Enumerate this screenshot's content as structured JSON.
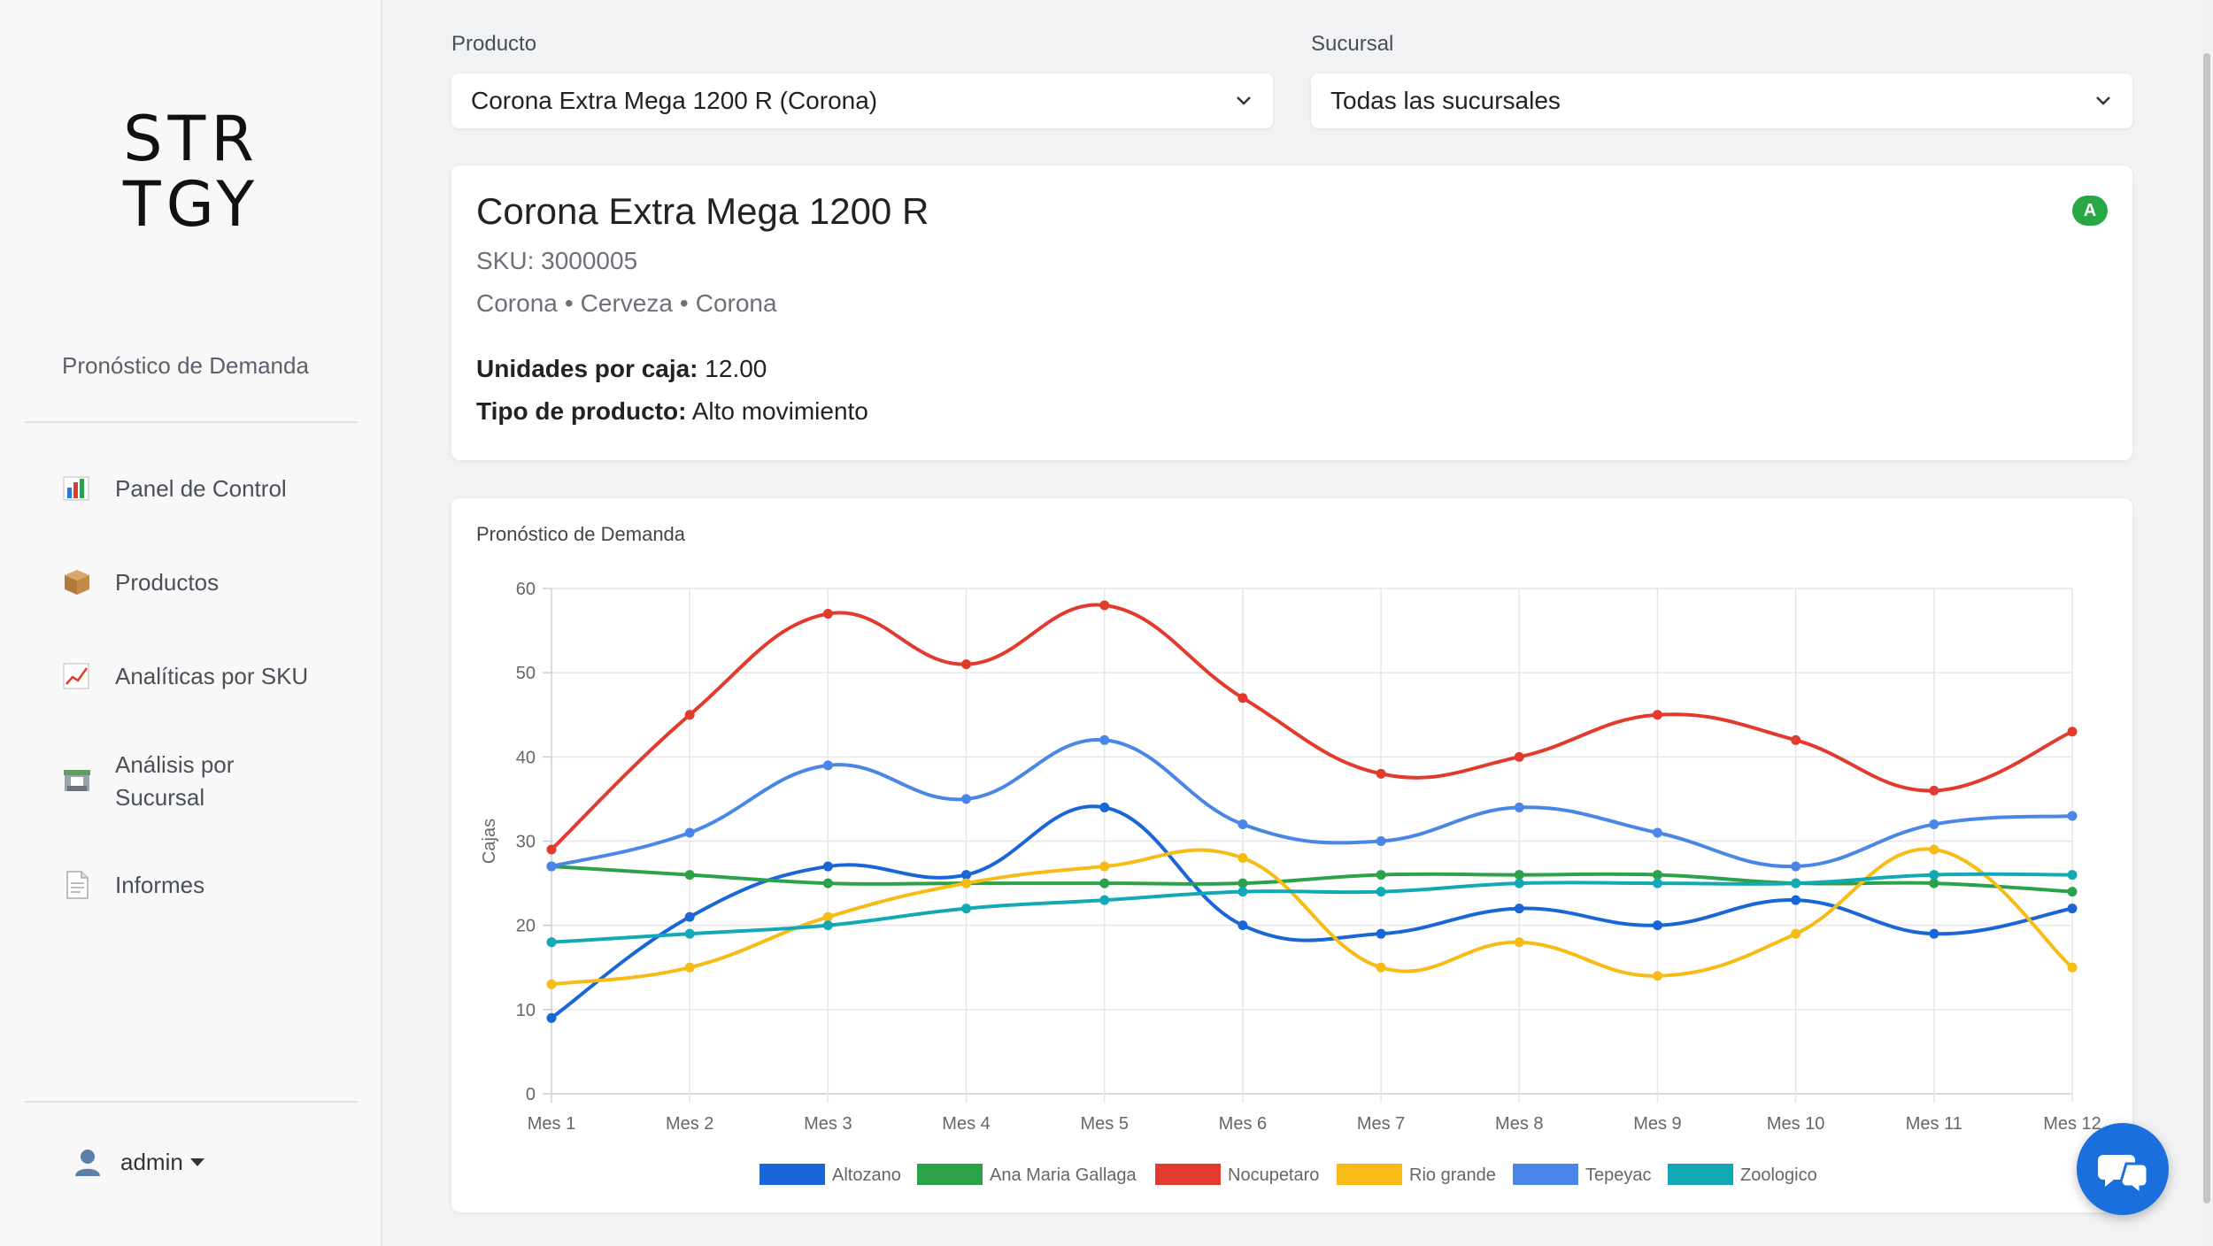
{
  "app": {
    "logo_line1": "STR",
    "logo_line2": "TGY"
  },
  "sidebar": {
    "title": "Pronóstico de Demanda",
    "items": [
      {
        "label": "Panel de Control",
        "icon": "bar-chart-icon"
      },
      {
        "label": "Productos",
        "icon": "package-icon"
      },
      {
        "label": "Analíticas por SKU",
        "icon": "trend-chart-icon"
      },
      {
        "label": "Análisis por Sucursal",
        "icon": "store-icon"
      },
      {
        "label": "Informes",
        "icon": "document-icon"
      }
    ],
    "user": {
      "name": "admin"
    }
  },
  "filters": {
    "product": {
      "label": "Producto",
      "value": "Corona Extra Mega 1200 R (Corona)"
    },
    "branch": {
      "label": "Sucursal",
      "value": "Todas las sucursales"
    }
  },
  "product": {
    "name": "Corona Extra Mega 1200 R",
    "sku": "SKU: 3000005",
    "brand": "Corona",
    "category": "Cerveza",
    "family": "Corona",
    "badge": "A",
    "units_label": "Unidades por caja:",
    "units_value": "12.00",
    "type_label": "Tipo de producto:",
    "type_value": "Alto movimiento"
  },
  "colors": {
    "Altozano": "#1a66d6",
    "Ana Maria Gallaga": "#2ba14a",
    "Nocupetaro": "#e23b2e",
    "Rio grande": "#f6bb14",
    "Tepeyac": "#4a86e8",
    "Zoologico": "#12a9b6"
  },
  "chart_data": {
    "type": "line",
    "title": "Pronóstico de Demanda",
    "xlabel": "",
    "ylabel": "Cajas",
    "ylim": [
      0,
      60
    ],
    "yticks": [
      0,
      10,
      20,
      30,
      40,
      50,
      60
    ],
    "categories": [
      "Mes 1",
      "Mes 2",
      "Mes 3",
      "Mes 4",
      "Mes 5",
      "Mes 6",
      "Mes 7",
      "Mes 8",
      "Mes 9",
      "Mes 10",
      "Mes 11",
      "Mes 12"
    ],
    "legend_position": "bottom",
    "series": [
      {
        "name": "Altozano",
        "values": [
          9,
          21,
          27,
          26,
          34,
          20,
          19,
          22,
          20,
          23,
          19,
          22
        ]
      },
      {
        "name": "Ana Maria Gallaga",
        "values": [
          27,
          26,
          25,
          25,
          25,
          25,
          26,
          26,
          26,
          25,
          25,
          24
        ]
      },
      {
        "name": "Nocupetaro",
        "values": [
          29,
          45,
          57,
          51,
          58,
          47,
          38,
          40,
          45,
          42,
          36,
          43
        ]
      },
      {
        "name": "Rio grande",
        "values": [
          13,
          15,
          21,
          25,
          27,
          28,
          15,
          18,
          14,
          19,
          29,
          15
        ]
      },
      {
        "name": "Tepeyac",
        "values": [
          27,
          31,
          39,
          35,
          42,
          32,
          30,
          34,
          31,
          27,
          32,
          33
        ]
      },
      {
        "name": "Zoologico",
        "values": [
          18,
          19,
          20,
          22,
          23,
          24,
          24,
          25,
          25,
          25,
          26,
          26
        ]
      }
    ]
  }
}
